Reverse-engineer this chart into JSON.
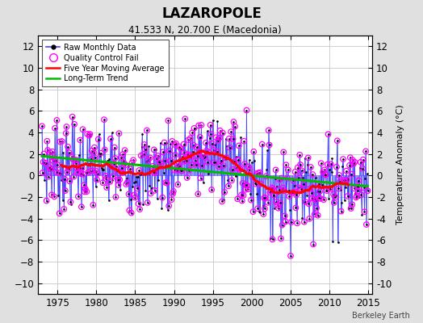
{
  "title": "LAZAROPOLE",
  "subtitle": "41.533 N, 20.700 E (Macedonia)",
  "ylabel": "Temperature Anomaly (°C)",
  "watermark": "Berkeley Earth",
  "xlim": [
    1972.5,
    2015.5
  ],
  "ylim": [
    -11,
    13
  ],
  "yticks": [
    -10,
    -8,
    -6,
    -4,
    -2,
    0,
    2,
    4,
    6,
    8,
    10,
    12
  ],
  "xticks": [
    1975,
    1980,
    1985,
    1990,
    1995,
    2000,
    2005,
    2010,
    2015
  ],
  "bg_color": "#e0e0e0",
  "plot_bg_color": "#ffffff",
  "raw_color": "#4444ff",
  "raw_marker_color": "#000000",
  "qc_color": "#ff00ff",
  "moving_avg_color": "#ff0000",
  "trend_color": "#00bb00",
  "seed": 7
}
